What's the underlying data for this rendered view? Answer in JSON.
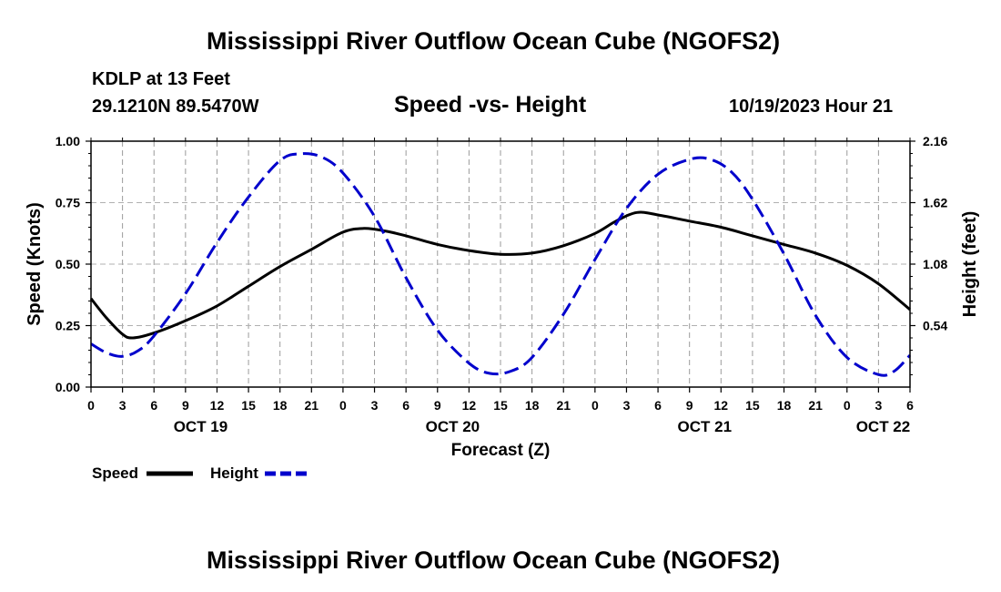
{
  "header": {
    "title": "Mississippi River Outflow Ocean Cube (NGOFS2)",
    "station_line": "KDLP at 13 Feet",
    "coords": "29.1210N  89.5470W",
    "subtitle": "Speed -vs- Height",
    "datetime": "10/19/2023 Hour 21"
  },
  "footer": {
    "title": "Mississippi River Outflow Ocean Cube (NGOFS2)"
  },
  "chart_data": {
    "type": "line",
    "title": "Speed -vs- Height",
    "xlabel": "Forecast (Z)",
    "ylabel": "Speed (Knots)",
    "y2label": "Height (feet)",
    "x_range_hours": [
      0,
      78
    ],
    "ylim": [
      0,
      1.0
    ],
    "y2lim": [
      0,
      2.16
    ],
    "grid": true,
    "x_ticks": [
      {
        "h": 0,
        "label": "0"
      },
      {
        "h": 3,
        "label": "3"
      },
      {
        "h": 6,
        "label": "6"
      },
      {
        "h": 9,
        "label": "9"
      },
      {
        "h": 12,
        "label": "12"
      },
      {
        "h": 15,
        "label": "15"
      },
      {
        "h": 18,
        "label": "18"
      },
      {
        "h": 21,
        "label": "21"
      },
      {
        "h": 24,
        "label": "0"
      },
      {
        "h": 27,
        "label": "3"
      },
      {
        "h": 30,
        "label": "6"
      },
      {
        "h": 33,
        "label": "9"
      },
      {
        "h": 36,
        "label": "12"
      },
      {
        "h": 39,
        "label": "15"
      },
      {
        "h": 42,
        "label": "18"
      },
      {
        "h": 45,
        "label": "21"
      },
      {
        "h": 48,
        "label": "0"
      },
      {
        "h": 51,
        "label": "3"
      },
      {
        "h": 54,
        "label": "6"
      },
      {
        "h": 57,
        "label": "9"
      },
      {
        "h": 60,
        "label": "12"
      },
      {
        "h": 63,
        "label": "15"
      },
      {
        "h": 66,
        "label": "18"
      },
      {
        "h": 69,
        "label": "21"
      },
      {
        "h": 72,
        "label": "0"
      },
      {
        "h": 75,
        "label": "3"
      },
      {
        "h": 78,
        "label": "6"
      }
    ],
    "date_labels": [
      {
        "h": 12,
        "label": "OCT 19"
      },
      {
        "h": 36,
        "label": "OCT 20"
      },
      {
        "h": 60,
        "label": "OCT 21"
      },
      {
        "h": 77,
        "label": "OCT 22"
      }
    ],
    "y_ticks": [
      {
        "v": 0.0,
        "label": "0.00"
      },
      {
        "v": 0.25,
        "label": "0.25"
      },
      {
        "v": 0.5,
        "label": "0.50"
      },
      {
        "v": 0.75,
        "label": "0.75"
      },
      {
        "v": 1.0,
        "label": "1.00"
      }
    ],
    "y2_ticks": [
      {
        "v": 0.54,
        "label": "0.54"
      },
      {
        "v": 1.08,
        "label": "1.08"
      },
      {
        "v": 1.62,
        "label": "1.62"
      },
      {
        "v": 2.16,
        "label": "2.16"
      }
    ],
    "series": [
      {
        "name": "Speed",
        "axis": "left",
        "color": "#000000",
        "style": "solid",
        "points": [
          [
            0,
            0.36
          ],
          [
            1.5,
            0.28
          ],
          [
            3,
            0.215
          ],
          [
            4,
            0.2
          ],
          [
            6,
            0.22
          ],
          [
            9,
            0.27
          ],
          [
            12,
            0.33
          ],
          [
            15,
            0.41
          ],
          [
            18,
            0.49
          ],
          [
            21,
            0.56
          ],
          [
            24,
            0.63
          ],
          [
            26,
            0.645
          ],
          [
            28,
            0.635
          ],
          [
            30,
            0.615
          ],
          [
            33,
            0.58
          ],
          [
            36,
            0.555
          ],
          [
            39,
            0.54
          ],
          [
            42,
            0.545
          ],
          [
            45,
            0.575
          ],
          [
            48,
            0.625
          ],
          [
            50,
            0.675
          ],
          [
            52,
            0.71
          ],
          [
            54,
            0.7
          ],
          [
            57,
            0.675
          ],
          [
            60,
            0.65
          ],
          [
            63,
            0.615
          ],
          [
            66,
            0.58
          ],
          [
            69,
            0.545
          ],
          [
            72,
            0.495
          ],
          [
            75,
            0.42
          ],
          [
            78,
            0.315
          ]
        ]
      },
      {
        "name": "Height",
        "axis": "right",
        "color": "#0000cc",
        "style": "dashed",
        "points": [
          [
            0,
            0.38
          ],
          [
            1.5,
            0.3
          ],
          [
            3,
            0.27
          ],
          [
            4.5,
            0.32
          ],
          [
            6,
            0.45
          ],
          [
            9,
            0.82
          ],
          [
            12,
            1.27
          ],
          [
            15,
            1.67
          ],
          [
            18,
            1.99
          ],
          [
            20,
            2.05
          ],
          [
            22,
            2.02
          ],
          [
            24,
            1.88
          ],
          [
            27,
            1.5
          ],
          [
            30,
            0.96
          ],
          [
            33,
            0.5
          ],
          [
            36,
            0.21
          ],
          [
            38,
            0.12
          ],
          [
            40,
            0.14
          ],
          [
            42,
            0.26
          ],
          [
            45,
            0.64
          ],
          [
            48,
            1.12
          ],
          [
            51,
            1.57
          ],
          [
            54,
            1.87
          ],
          [
            57,
            2.0
          ],
          [
            59,
            2.0
          ],
          [
            61,
            1.89
          ],
          [
            63,
            1.65
          ],
          [
            66,
            1.17
          ],
          [
            69,
            0.63
          ],
          [
            72,
            0.26
          ],
          [
            75,
            0.11
          ],
          [
            76.5,
            0.14
          ],
          [
            78,
            0.28
          ]
        ]
      }
    ]
  },
  "legend": {
    "speed_label": "Speed",
    "height_label": "Height",
    "speed_color": "#000000",
    "height_color": "#0000cc"
  }
}
